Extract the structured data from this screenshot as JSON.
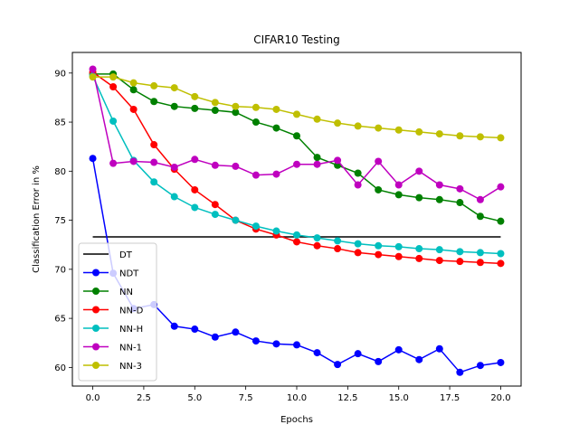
{
  "chart_data": {
    "type": "line",
    "title": "CIFAR10 Testing",
    "xlabel": "Epochs",
    "ylabel": "Classification Error in %",
    "xlim": [
      -1.0,
      21.0
    ],
    "ylim": [
      58.1,
      92.1
    ],
    "xticks": [
      0.0,
      2.5,
      5.0,
      7.5,
      10.0,
      12.5,
      15.0,
      17.5,
      20.0
    ],
    "xtick_labels": [
      "0.0",
      "2.5",
      "5.0",
      "7.5",
      "10.0",
      "12.5",
      "15.0",
      "17.5",
      "20.0"
    ],
    "yticks": [
      60,
      65,
      70,
      75,
      80,
      85,
      90
    ],
    "ytick_labels": [
      "60",
      "65",
      "70",
      "75",
      "80",
      "85",
      "90"
    ],
    "grid": false,
    "legend_position": "lower-left",
    "x": [
      0,
      1,
      2,
      3,
      4,
      5,
      6,
      7,
      8,
      9,
      10,
      11,
      12,
      13,
      14,
      15,
      16,
      17,
      18,
      19,
      20
    ],
    "series": [
      {
        "name": "DT",
        "color": "#000000",
        "marker": false,
        "values": [
          73.3,
          73.3,
          73.3,
          73.3,
          73.3,
          73.3,
          73.3,
          73.3,
          73.3,
          73.3,
          73.3,
          73.3,
          73.3,
          73.3,
          73.3,
          73.3,
          73.3,
          73.3,
          73.3,
          73.3,
          73.3
        ]
      },
      {
        "name": "NDT",
        "color": "#0000ff",
        "marker": true,
        "values": [
          81.3,
          69.6,
          66.0,
          66.4,
          64.2,
          63.9,
          63.1,
          63.6,
          62.7,
          62.4,
          62.3,
          61.5,
          60.3,
          61.4,
          60.6,
          61.8,
          60.8,
          61.9,
          59.5,
          60.2,
          60.5
        ]
      },
      {
        "name": "NN",
        "color": "#008000",
        "marker": true,
        "values": [
          89.9,
          89.9,
          88.3,
          87.1,
          86.6,
          86.4,
          86.2,
          86.0,
          85.0,
          84.4,
          83.6,
          81.4,
          80.6,
          79.8,
          78.1,
          77.6,
          77.3,
          77.1,
          76.8,
          75.4,
          74.9
        ]
      },
      {
        "name": "NN-D",
        "color": "#ff0000",
        "marker": true,
        "values": [
          90.1,
          88.6,
          86.3,
          82.7,
          80.2,
          78.1,
          76.6,
          75.0,
          74.1,
          73.5,
          72.8,
          72.4,
          72.1,
          71.7,
          71.5,
          71.3,
          71.1,
          70.9,
          70.8,
          70.7,
          70.6
        ]
      },
      {
        "name": "NN-H",
        "color": "#00bfbf",
        "marker": true,
        "values": [
          89.7,
          85.1,
          81.1,
          78.9,
          77.4,
          76.3,
          75.6,
          75.0,
          74.4,
          73.9,
          73.5,
          73.2,
          72.9,
          72.6,
          72.4,
          72.3,
          72.1,
          72.0,
          71.8,
          71.7,
          71.6
        ]
      },
      {
        "name": "NN-1",
        "color": "#bf00bf",
        "marker": true,
        "values": [
          90.4,
          80.8,
          81.0,
          80.9,
          80.4,
          81.2,
          80.6,
          80.5,
          79.6,
          79.7,
          80.7,
          80.7,
          81.1,
          78.6,
          81.0,
          78.6,
          80.0,
          78.6,
          78.2,
          77.1,
          78.4
        ]
      },
      {
        "name": "NN-3",
        "color": "#bfbf00",
        "marker": true,
        "values": [
          89.6,
          89.6,
          89.0,
          88.7,
          88.5,
          87.6,
          87.0,
          86.6,
          86.5,
          86.3,
          85.8,
          85.3,
          84.9,
          84.6,
          84.4,
          84.2,
          84.0,
          83.8,
          83.6,
          83.5,
          83.4
        ]
      }
    ]
  }
}
